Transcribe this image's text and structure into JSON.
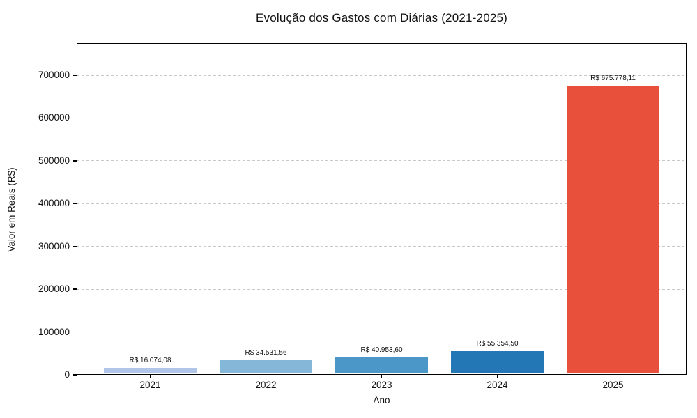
{
  "chart_data": {
    "type": "bar",
    "title": "Evolução dos Gastos com Diárias (2021-2025)",
    "xlabel": "Ano",
    "ylabel": "Valor em Reais (R$)",
    "categories": [
      "2021",
      "2022",
      "2023",
      "2024",
      "2025"
    ],
    "values": [
      16074.08,
      34531.56,
      40953.6,
      55354.5,
      675778.11
    ],
    "bar_value_labels": [
      "R$ 16.074,08",
      "R$ 34.531,56",
      "R$ 40.953,60",
      "R$ 55.354,50",
      "R$ 675.778,11"
    ],
    "bar_colors": [
      "#b0c5e8",
      "#85b7d9",
      "#4b97c8",
      "#2277b4",
      "#e8503c"
    ],
    "ylim": [
      0,
      775000
    ],
    "yticks": [
      0,
      100000,
      200000,
      300000,
      400000,
      500000,
      600000,
      700000
    ],
    "ytick_labels": [
      "0",
      "100000",
      "200000",
      "300000",
      "400000",
      "500000",
      "600000",
      "700000"
    ],
    "grid": "horizontal-dashed",
    "grid_color": "#c9c9c9",
    "legend": "none",
    "spine_color": "#000000"
  }
}
